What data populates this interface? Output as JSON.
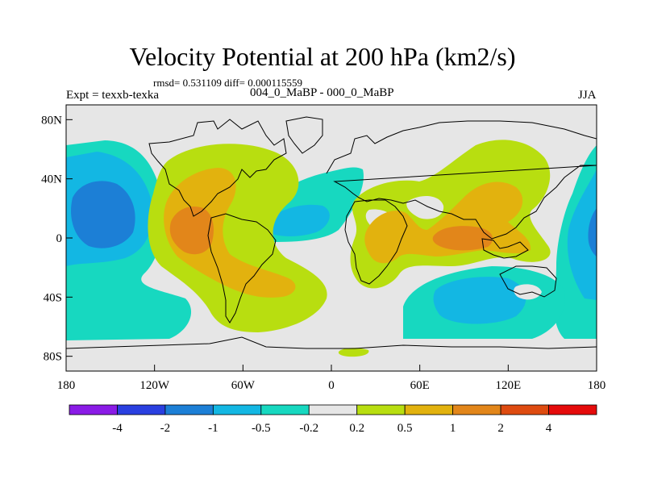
{
  "title": "Velocity Potential at 200 hPa (km2/s)",
  "stats": "rmsd= 0.531109 diff= 0.000115559",
  "experiment": "Expt = texxb-texka",
  "subtitle": "004_0_MaBP - 000_0_MaBP",
  "season": "JJA",
  "chart_data": {
    "type": "heatmap",
    "projection": "cylindrical equidistant",
    "field": "Velocity Potential difference at 200 hPa",
    "units": "km2/s",
    "xlim": [
      -180,
      180
    ],
    "ylim": [
      -90,
      90
    ],
    "x_ticks": [
      {
        "value": -180,
        "label": "180"
      },
      {
        "value": -120,
        "label": "120W"
      },
      {
        "value": -60,
        "label": "60W"
      },
      {
        "value": 0,
        "label": "0"
      },
      {
        "value": 60,
        "label": "60E"
      },
      {
        "value": 120,
        "label": "120E"
      },
      {
        "value": 180,
        "label": "180"
      }
    ],
    "y_ticks": [
      {
        "value": 80,
        "label": "80N"
      },
      {
        "value": 40,
        "label": "40N"
      },
      {
        "value": 0,
        "label": "0"
      },
      {
        "value": -40,
        "label": "40S"
      },
      {
        "value": -80,
        "label": "80S"
      }
    ],
    "contour_levels": [
      -4,
      -2,
      -1,
      -0.5,
      -0.2,
      0.2,
      0.5,
      1,
      2,
      4
    ],
    "colorbar_colors": [
      "#8a1be6",
      "#2a3fe0",
      "#1c7fd6",
      "#13b7e3",
      "#17d8c0",
      "#e6e6e6",
      "#b8de10",
      "#e2b20e",
      "#e2861a",
      "#de4b10",
      "#e50b0b"
    ],
    "features": [
      {
        "name": "Central American / South American positive maximum",
        "center": [
          -100,
          5
        ],
        "max_value": 2
      },
      {
        "name": "Indian Ocean / Maritime continent positive maximum",
        "center": [
          80,
          0
        ],
        "max_value": 2
      },
      {
        "name": "Central Pacific negative minimum",
        "center": [
          -150,
          15
        ],
        "min_value": -1
      },
      {
        "name": "Eastern Pacific / Indonesian negative band",
        "center": [
          170,
          0
        ],
        "min_value": -1
      },
      {
        "name": "Southern Indian Ocean negative area",
        "center": [
          100,
          -40
        ],
        "min_value": -1
      },
      {
        "name": "Atlantic negative band",
        "center": [
          -20,
          5
        ],
        "min_value": -1
      }
    ]
  }
}
